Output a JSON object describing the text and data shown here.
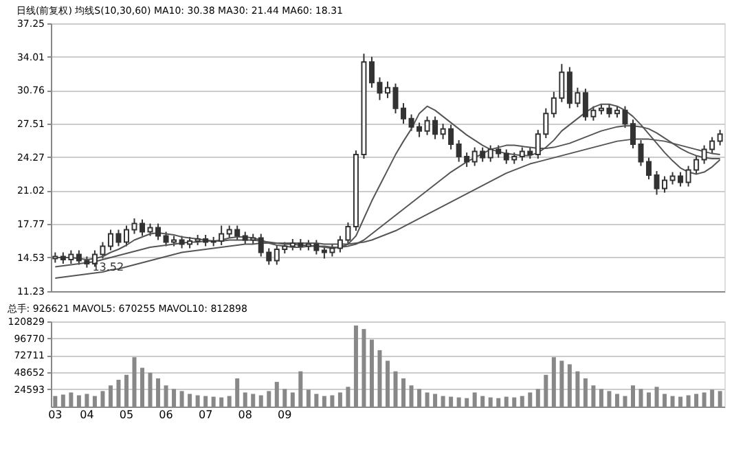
{
  "chart_data": [
    {
      "type": "candlestick",
      "title": "日线(前复权)  均线S(10,30,60) MA10: 30.38 MA30: 21.44 MA60: 18.31",
      "color": "#333333",
      "categories": [
        "03",
        null,
        null,
        null,
        "04",
        null,
        null,
        null,
        null,
        "05",
        null,
        null,
        null,
        null,
        "06",
        null,
        null,
        null,
        null,
        "07",
        null,
        null,
        null,
        null,
        "08",
        null,
        null,
        null,
        null,
        "09",
        null,
        null,
        null,
        null,
        null,
        null,
        null,
        null,
        null,
        null,
        null,
        null,
        null,
        null,
        null,
        null,
        null,
        null,
        null,
        null,
        null,
        null,
        null,
        null,
        null,
        null,
        null,
        null,
        null,
        null,
        null,
        null,
        null,
        null,
        null,
        null,
        null,
        null,
        null,
        null,
        null,
        null,
        null,
        null,
        null,
        null,
        null,
        null,
        null,
        null,
        null,
        null,
        null,
        null,
        null
      ],
      "ohlc": [
        [
          14.4,
          15.0,
          14.0,
          14.6
        ],
        [
          14.6,
          15.0,
          13.9,
          14.3
        ],
        [
          14.3,
          15.2,
          13.9,
          14.8
        ],
        [
          14.8,
          15.2,
          13.8,
          14.2
        ],
        [
          14.2,
          14.6,
          13.52,
          13.9
        ],
        [
          13.9,
          15.2,
          13.6,
          14.8
        ],
        [
          14.8,
          16.0,
          14.4,
          15.6
        ],
        [
          15.6,
          17.2,
          15.2,
          16.8
        ],
        [
          16.8,
          17.2,
          15.6,
          16.0
        ],
        [
          16.0,
          17.6,
          15.6,
          17.2
        ],
        [
          17.2,
          18.3,
          16.8,
          17.8
        ],
        [
          17.8,
          18.2,
          16.6,
          17.0
        ],
        [
          17.0,
          17.8,
          16.6,
          17.4
        ],
        [
          17.4,
          17.8,
          16.2,
          16.6
        ],
        [
          16.6,
          17.0,
          15.6,
          16.0
        ],
        [
          16.0,
          16.6,
          15.6,
          16.2
        ],
        [
          16.2,
          16.6,
          15.4,
          15.8
        ],
        [
          15.8,
          16.5,
          15.4,
          16.1
        ],
        [
          16.1,
          16.7,
          15.7,
          16.3
        ],
        [
          16.3,
          16.7,
          15.6,
          16.0
        ],
        [
          16.0,
          16.5,
          15.6,
          16.1
        ],
        [
          16.1,
          17.6,
          15.7,
          16.8
        ],
        [
          16.8,
          17.6,
          16.4,
          17.2
        ],
        [
          17.2,
          17.6,
          16.2,
          16.6
        ],
        [
          16.6,
          17.0,
          15.8,
          16.2
        ],
        [
          16.2,
          16.8,
          15.8,
          16.4
        ],
        [
          16.4,
          16.8,
          14.6,
          15.0
        ],
        [
          15.0,
          15.4,
          13.8,
          14.2
        ],
        [
          14.2,
          15.7,
          13.8,
          15.3
        ],
        [
          15.3,
          16.0,
          14.9,
          15.6
        ],
        [
          15.6,
          16.3,
          15.2,
          15.9
        ],
        [
          15.9,
          16.3,
          15.2,
          15.6
        ],
        [
          15.6,
          16.2,
          15.2,
          15.8
        ],
        [
          15.8,
          16.2,
          14.8,
          15.2
        ],
        [
          15.2,
          15.6,
          14.4,
          15.0
        ],
        [
          15.0,
          15.8,
          14.6,
          15.4
        ],
        [
          15.4,
          16.6,
          15.0,
          16.2
        ],
        [
          16.2,
          17.9,
          15.8,
          17.5
        ],
        [
          17.5,
          24.9,
          17.1,
          24.5
        ],
        [
          24.5,
          34.3,
          24.1,
          33.5
        ],
        [
          33.5,
          34.0,
          31.0,
          31.5
        ],
        [
          31.5,
          32.0,
          29.8,
          30.5
        ],
        [
          30.5,
          31.6,
          30.0,
          31.0
        ],
        [
          31.0,
          31.4,
          28.5,
          29.0
        ],
        [
          29.0,
          29.5,
          27.5,
          28.0
        ],
        [
          28.0,
          28.4,
          26.8,
          27.2
        ],
        [
          27.2,
          27.6,
          26.2,
          26.8
        ],
        [
          26.8,
          28.2,
          26.4,
          27.8
        ],
        [
          27.8,
          28.2,
          26.0,
          26.5
        ],
        [
          26.5,
          27.5,
          26.0,
          27.0
        ],
        [
          27.0,
          27.4,
          25.0,
          25.5
        ],
        [
          25.5,
          25.9,
          23.8,
          24.3
        ],
        [
          24.3,
          24.7,
          23.3,
          23.8
        ],
        [
          23.8,
          25.2,
          23.4,
          24.8
        ],
        [
          24.8,
          25.2,
          23.8,
          24.2
        ],
        [
          24.2,
          25.4,
          23.8,
          25.0
        ],
        [
          25.0,
          25.4,
          24.2,
          24.6
        ],
        [
          24.6,
          25.0,
          23.6,
          24.0
        ],
        [
          24.0,
          24.7,
          23.6,
          24.3
        ],
        [
          24.3,
          25.2,
          23.9,
          24.8
        ],
        [
          24.8,
          25.2,
          24.1,
          24.5
        ],
        [
          24.5,
          26.9,
          24.1,
          26.5
        ],
        [
          26.5,
          29.0,
          26.1,
          28.5
        ],
        [
          28.5,
          30.6,
          28.1,
          30.0
        ],
        [
          30.0,
          33.3,
          29.6,
          32.5
        ],
        [
          32.5,
          33.0,
          29.0,
          29.5
        ],
        [
          29.5,
          31.0,
          29.1,
          30.5
        ],
        [
          30.5,
          30.9,
          27.8,
          28.2
        ],
        [
          28.2,
          29.2,
          27.8,
          28.8
        ],
        [
          28.8,
          29.4,
          28.4,
          29.0
        ],
        [
          29.0,
          29.4,
          28.1,
          28.5
        ],
        [
          28.5,
          29.2,
          28.1,
          28.8
        ],
        [
          28.8,
          29.2,
          27.1,
          27.5
        ],
        [
          27.5,
          27.9,
          25.1,
          25.5
        ],
        [
          25.5,
          25.9,
          23.4,
          23.8
        ],
        [
          23.8,
          24.2,
          22.1,
          22.5
        ],
        [
          22.5,
          22.9,
          20.6,
          21.2
        ],
        [
          21.2,
          22.4,
          20.8,
          22.0
        ],
        [
          22.0,
          22.8,
          21.6,
          22.4
        ],
        [
          22.4,
          22.8,
          21.4,
          21.8
        ],
        [
          21.8,
          23.4,
          21.4,
          23.0
        ],
        [
          23.0,
          24.4,
          22.6,
          24.0
        ],
        [
          24.0,
          25.4,
          23.6,
          25.0
        ],
        [
          25.0,
          26.2,
          24.6,
          25.8
        ],
        [
          25.8,
          26.9,
          25.4,
          26.5
        ]
      ],
      "series": [
        {
          "type": "line",
          "color": "#555555",
          "values": [
            14.5,
            14.5,
            14.5,
            14.4,
            14.3,
            14.4,
            14.6,
            15.0,
            15.3,
            15.7,
            16.2,
            16.5,
            16.8,
            16.9,
            16.8,
            16.7,
            16.5,
            16.4,
            16.3,
            16.2,
            16.1,
            16.2,
            16.4,
            16.5,
            16.5,
            16.4,
            16.2,
            15.9,
            15.7,
            15.6,
            15.5,
            15.5,
            15.6,
            15.6,
            15.5,
            15.4,
            15.5,
            15.8,
            16.6,
            18.3,
            20.0,
            21.5,
            23.0,
            24.5,
            25.8,
            27.0,
            28.5,
            29.2,
            28.8,
            28.2,
            27.6,
            27.0,
            26.4,
            25.9,
            25.4,
            25.0,
            24.8,
            24.6,
            24.5,
            24.4,
            24.4,
            24.7,
            25.2,
            25.9,
            26.8,
            27.4,
            28.0,
            28.6,
            29.1,
            29.4,
            29.4,
            29.2,
            28.8,
            28.2,
            27.4,
            26.5,
            25.6,
            24.7,
            23.9,
            23.2,
            22.8,
            22.6,
            22.8,
            23.3,
            24.0
          ]
        },
        {
          "type": "line",
          "color": "#555555",
          "values": [
            13.6,
            13.7,
            13.8,
            13.9,
            14.0,
            14.1,
            14.3,
            14.5,
            14.7,
            14.9,
            15.1,
            15.3,
            15.5,
            15.6,
            15.7,
            15.8,
            15.9,
            16.0,
            16.0,
            16.1,
            16.1,
            16.1,
            16.2,
            16.2,
            16.2,
            16.2,
            16.1,
            16.0,
            15.9,
            15.8,
            15.8,
            15.7,
            15.7,
            15.6,
            15.6,
            15.5,
            15.5,
            15.6,
            15.8,
            16.2,
            16.8,
            17.4,
            18.0,
            18.6,
            19.2,
            19.8,
            20.4,
            21.0,
            21.6,
            22.2,
            22.8,
            23.3,
            23.8,
            24.2,
            24.6,
            25.0,
            25.2,
            25.4,
            25.4,
            25.3,
            25.2,
            25.1,
            25.1,
            25.2,
            25.4,
            25.6,
            25.9,
            26.2,
            26.5,
            26.8,
            27.0,
            27.2,
            27.3,
            27.3,
            27.2,
            27.0,
            26.6,
            26.1,
            25.6,
            25.1,
            24.7,
            24.4,
            24.2,
            24.1,
            24.1
          ]
        },
        {
          "type": "line",
          "color": "#555555",
          "values": [
            12.5,
            12.6,
            12.7,
            12.8,
            12.9,
            13.0,
            13.1,
            13.3,
            13.4,
            13.6,
            13.8,
            14.0,
            14.2,
            14.4,
            14.6,
            14.8,
            15.0,
            15.1,
            15.2,
            15.3,
            15.4,
            15.5,
            15.6,
            15.7,
            15.8,
            15.8,
            15.9,
            15.9,
            15.9,
            15.9,
            15.9,
            15.9,
            15.9,
            15.9,
            15.8,
            15.8,
            15.8,
            15.8,
            15.9,
            16.0,
            16.2,
            16.5,
            16.8,
            17.1,
            17.5,
            17.9,
            18.3,
            18.7,
            19.1,
            19.5,
            19.9,
            20.3,
            20.7,
            21.1,
            21.5,
            21.9,
            22.3,
            22.7,
            23.0,
            23.3,
            23.6,
            23.8,
            24.0,
            24.2,
            24.4,
            24.6,
            24.8,
            25.0,
            25.2,
            25.4,
            25.6,
            25.8,
            25.9,
            26.0,
            26.0,
            26.0,
            25.9,
            25.8,
            25.6,
            25.4,
            25.2,
            25.0,
            24.8,
            24.6,
            24.5
          ]
        }
      ],
      "ylim": [
        11.23,
        37.25
      ],
      "yticks": [
        11.23,
        14.53,
        17.77,
        21.02,
        24.27,
        27.51,
        30.76,
        34.01,
        37.25
      ],
      "grid": "y",
      "tick_labels": "y",
      "annotations": [
        {
          "text": "13.52",
          "y": 13.52
        }
      ]
    },
    {
      "type": "bar",
      "title": "总手: 926621 MAVOL5: 670255 MAVOL10: 812898",
      "color": "#888888",
      "categories": [
        "03",
        null,
        null,
        null,
        "04",
        null,
        null,
        null,
        null,
        "05",
        null,
        null,
        null,
        null,
        "06",
        null,
        null,
        null,
        null,
        "07",
        null,
        null,
        null,
        null,
        "08",
        null,
        null,
        null,
        null,
        "09",
        null,
        null,
        null,
        null,
        null,
        null,
        null,
        null,
        null,
        null,
        null,
        null,
        null,
        null,
        null,
        null,
        null,
        null,
        null,
        null,
        null,
        null,
        null,
        null,
        null,
        null,
        null,
        null,
        null,
        null,
        null,
        null,
        null,
        null,
        null,
        null,
        null,
        null,
        null,
        null,
        null,
        null,
        null,
        null,
        null,
        null,
        null,
        null,
        null,
        null,
        null,
        null,
        null,
        null,
        null
      ],
      "values": [
        15000,
        17000,
        20000,
        16000,
        18000,
        15000,
        22000,
        30000,
        38000,
        45000,
        70000,
        55000,
        48000,
        40000,
        30000,
        25000,
        22000,
        18000,
        16000,
        15000,
        14000,
        13000,
        15000,
        40000,
        20000,
        18000,
        16000,
        22000,
        35000,
        25000,
        20000,
        50000,
        24000,
        18000,
        15000,
        16000,
        20000,
        28000,
        115000,
        110000,
        95000,
        80000,
        65000,
        50000,
        40000,
        30000,
        25000,
        20000,
        18000,
        15000,
        14000,
        13000,
        12000,
        20000,
        15000,
        13000,
        12000,
        14000,
        13000,
        15000,
        20000,
        25000,
        45000,
        70000,
        65000,
        60000,
        50000,
        40000,
        30000,
        25000,
        22000,
        18000,
        15000,
        30000,
        25000,
        20000,
        28000,
        18000,
        15000,
        14000,
        16000,
        18000,
        20000,
        24000,
        22000
      ],
      "ylim": [
        0,
        120829
      ],
      "yticks": [
        24593,
        48652,
        72711,
        96770,
        120829
      ],
      "grid": "y"
    }
  ]
}
